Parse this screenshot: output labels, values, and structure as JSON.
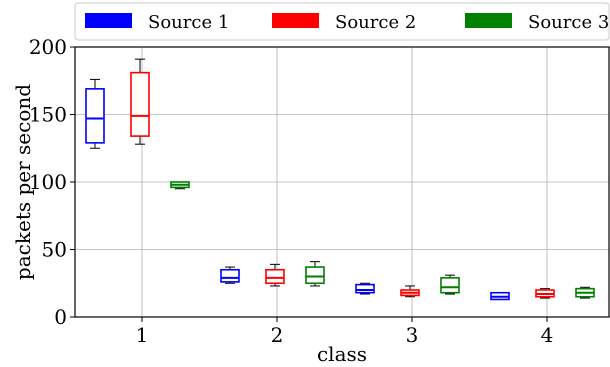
{
  "chart_data": {
    "type": "box",
    "title": "",
    "xlabel": "class",
    "ylabel": "packets per second",
    "categories": [
      "1",
      "2",
      "3",
      "4"
    ],
    "ylim": [
      0,
      200
    ],
    "yticks": [
      0,
      50,
      100,
      150,
      200
    ],
    "grid": true,
    "legend_position": "top",
    "series": [
      {
        "name": "Source 1",
        "color": "#0000ff",
        "boxes": [
          {
            "whislo": 125,
            "q1": 129,
            "med": 147,
            "q3": 169,
            "whishi": 176
          },
          {
            "whislo": 25,
            "q1": 26,
            "med": 29,
            "q3": 35,
            "whishi": 37
          },
          {
            "whislo": 17,
            "q1": 18,
            "med": 20,
            "q3": 24,
            "whishi": 25
          },
          {
            "whislo": 13,
            "q1": 13,
            "med": 15,
            "q3": 18,
            "whishi": 18
          }
        ]
      },
      {
        "name": "Source 2",
        "color": "#ff0000",
        "boxes": [
          {
            "whislo": 128,
            "q1": 134,
            "med": 149,
            "q3": 181,
            "whishi": 191
          },
          {
            "whislo": 23,
            "q1": 25,
            "med": 29,
            "q3": 35,
            "whishi": 39
          },
          {
            "whislo": 15,
            "q1": 16,
            "med": 18,
            "q3": 20,
            "whishi": 23
          },
          {
            "whislo": 14,
            "q1": 15,
            "med": 17,
            "q3": 20,
            "whishi": 21
          }
        ]
      },
      {
        "name": "Source 3",
        "color": "#008000",
        "boxes": [
          {
            "whislo": 95,
            "q1": 96,
            "med": 98,
            "q3": 100,
            "whishi": 100
          },
          {
            "whislo": 23,
            "q1": 25,
            "med": 30,
            "q3": 37,
            "whishi": 41
          },
          {
            "whislo": 17,
            "q1": 18,
            "med": 22,
            "q3": 29,
            "whishi": 31
          },
          {
            "whislo": 14,
            "q1": 15,
            "med": 18,
            "q3": 21,
            "whishi": 22
          }
        ]
      }
    ]
  }
}
